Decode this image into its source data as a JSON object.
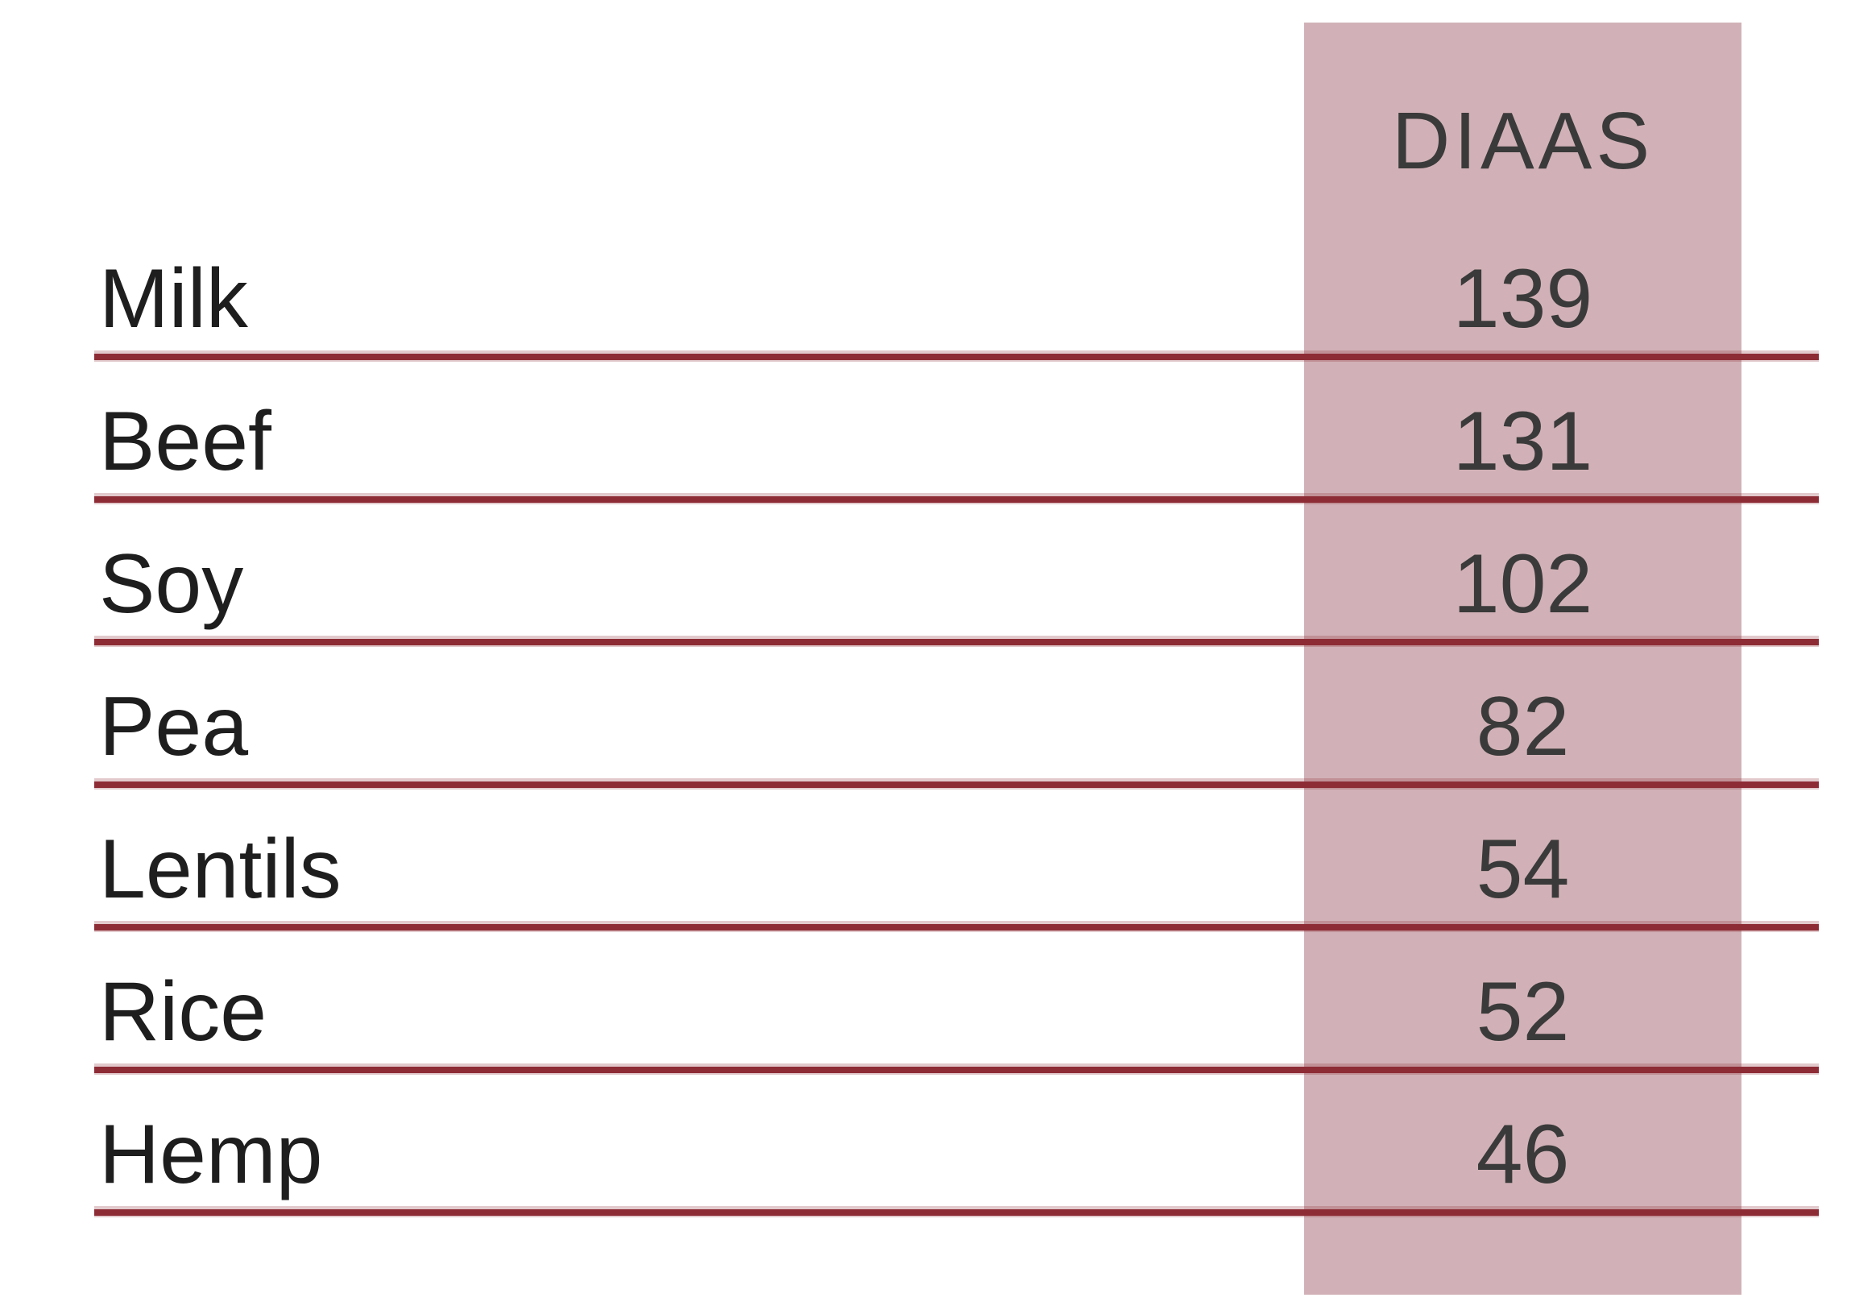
{
  "table": {
    "header": {
      "value_label": "DIAAS"
    },
    "rows": [
      {
        "label": "Milk",
        "value": "139"
      },
      {
        "label": "Beef",
        "value": "131"
      },
      {
        "label": "Soy",
        "value": "102"
      },
      {
        "label": "Pea",
        "value": "82"
      },
      {
        "label": "Lentils",
        "value": "54"
      },
      {
        "label": "Rice",
        "value": "52"
      },
      {
        "label": "Hemp",
        "value": "46"
      }
    ]
  },
  "chart_data": {
    "type": "table",
    "columns": [
      "",
      "DIAAS"
    ],
    "categories": [
      "Milk",
      "Beef",
      "Soy",
      "Pea",
      "Lentils",
      "Rice",
      "Hemp"
    ],
    "values": [
      139,
      131,
      102,
      82,
      54,
      52,
      46
    ],
    "value_column_label": "DIAAS",
    "layout": "value column highlighted with rose band; dark red underline after each row"
  },
  "colors": {
    "background": "#ffffff",
    "band": "#d1b1b7",
    "line": "#8d2c35",
    "line_soft": "rgba(141,44,53,0.25)",
    "label_text": "#1e1e1e",
    "value_text": "#3a3a3a"
  }
}
